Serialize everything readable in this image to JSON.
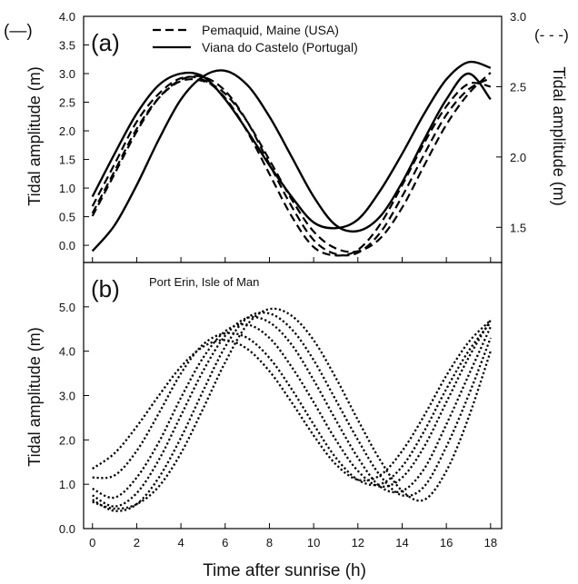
{
  "figure": {
    "xlabel": "Time after sunrise (h)",
    "x_ticks": [
      0,
      2,
      4,
      6,
      8,
      10,
      12,
      14,
      16,
      18
    ]
  },
  "chart_data": [
    {
      "type": "line",
      "panel_label": "(a)",
      "ylabel_left": "Tidal amplitude (m)",
      "ylabel_right": "Tidal amplitude (m)",
      "left_axis_marker": "(—)",
      "right_axis_marker": "(- - -)",
      "xlim": [
        -0.4,
        18.5
      ],
      "ylim_left": [
        -0.3,
        4.0
      ],
      "ylim_right": [
        1.25,
        3.0
      ],
      "yticks_left": [
        0.0,
        0.5,
        1.0,
        1.5,
        2.0,
        2.5,
        3.0,
        3.5,
        4.0
      ],
      "yticks_right": [
        1.5,
        2.0,
        2.5,
        3.0
      ],
      "legend_position": "top-right",
      "legend": [
        {
          "label": "Pemaquid, Maine (USA)",
          "style": "dashed"
        },
        {
          "label": "Viana do Castelo (Portugal)",
          "style": "solid"
        }
      ],
      "series": [
        {
          "name": "Viana do Castelo (Portugal)",
          "style": "solid",
          "axis": "left",
          "x": [
            0,
            1,
            2,
            3,
            4,
            5,
            6,
            7,
            8,
            9,
            10,
            11,
            12,
            13,
            14,
            15,
            16,
            17,
            18
          ],
          "y": [
            0.85,
            1.6,
            2.3,
            2.8,
            3.0,
            2.95,
            2.55,
            2.0,
            1.4,
            0.85,
            0.4,
            0.3,
            0.45,
            0.95,
            1.6,
            2.3,
            2.9,
            3.2,
            3.1
          ]
        },
        {
          "name": "Viana do Castelo (Portugal)",
          "style": "solid",
          "axis": "left",
          "x": [
            0,
            1,
            2,
            3,
            4,
            5,
            6,
            7,
            8,
            9,
            10,
            11,
            12,
            13,
            14,
            15,
            16,
            17,
            18
          ],
          "y": [
            -0.1,
            0.35,
            1.05,
            1.85,
            2.55,
            2.95,
            3.05,
            2.8,
            2.25,
            1.55,
            0.85,
            0.35,
            0.25,
            0.5,
            1.1,
            1.85,
            2.55,
            3.0,
            2.55
          ]
        },
        {
          "name": "Pemaquid, Maine (USA)",
          "style": "dashed",
          "axis": "right",
          "x": [
            0,
            1,
            2,
            3,
            4,
            5,
            6,
            7,
            8,
            9,
            10,
            11,
            12,
            13,
            14,
            15,
            16,
            17,
            18
          ],
          "y": [
            1.65,
            1.95,
            2.25,
            2.45,
            2.56,
            2.55,
            2.42,
            2.18,
            1.88,
            1.58,
            1.36,
            1.3,
            1.34,
            1.52,
            1.8,
            2.1,
            2.36,
            2.52,
            2.5
          ]
        },
        {
          "name": "Pemaquid, Maine (USA)",
          "style": "dashed",
          "axis": "right",
          "x": [
            0,
            1,
            2,
            3,
            4,
            5,
            6,
            7,
            8,
            9,
            10,
            11,
            12,
            13,
            14,
            15,
            16,
            17,
            18
          ],
          "y": [
            1.58,
            1.88,
            2.18,
            2.42,
            2.55,
            2.57,
            2.47,
            2.25,
            1.95,
            1.65,
            1.41,
            1.31,
            1.32,
            1.46,
            1.72,
            2.02,
            2.3,
            2.48,
            2.56
          ]
        },
        {
          "name": "Pemaquid, Maine (USA)",
          "style": "dashed",
          "axis": "right",
          "x": [
            0,
            1,
            2,
            3,
            4,
            5,
            6,
            7,
            8,
            9,
            10,
            11,
            12,
            13,
            14,
            15,
            16,
            17,
            18
          ],
          "y": [
            1.6,
            1.9,
            2.2,
            2.42,
            2.54,
            2.54,
            2.45,
            2.25,
            1.98,
            1.7,
            1.47,
            1.35,
            1.33,
            1.42,
            1.64,
            1.94,
            2.23,
            2.45,
            2.6
          ]
        }
      ]
    },
    {
      "type": "line",
      "panel_label": "(b)",
      "annotation": "Port Erin, Isle of Man",
      "ylabel": "Tidal amplitude (m)",
      "xlim": [
        -0.4,
        18.5
      ],
      "ylim": [
        0.0,
        6.0
      ],
      "yticks": [
        0.0,
        1.0,
        2.0,
        3.0,
        4.0,
        5.0
      ],
      "series": [
        {
          "style": "dotted",
          "x": [
            0,
            1,
            2,
            3,
            4,
            5,
            6,
            7,
            8,
            9,
            10,
            11,
            12,
            13,
            14,
            15,
            16,
            17,
            18
          ],
          "y": [
            1.35,
            1.7,
            2.3,
            3.0,
            3.65,
            4.1,
            4.25,
            4.05,
            3.55,
            2.85,
            2.1,
            1.45,
            1.1,
            1.2,
            1.75,
            2.55,
            3.45,
            4.2,
            4.7
          ]
        },
        {
          "style": "dotted",
          "x": [
            0,
            1,
            2,
            3,
            4,
            5,
            6,
            7,
            8,
            9,
            10,
            11,
            12,
            13,
            14,
            15,
            16,
            17,
            18
          ],
          "y": [
            1.15,
            1.2,
            1.75,
            2.6,
            3.5,
            4.15,
            4.4,
            4.3,
            3.85,
            3.15,
            2.35,
            1.6,
            1.1,
            1.0,
            1.4,
            2.2,
            3.15,
            4.0,
            4.65
          ]
        },
        {
          "style": "dotted",
          "x": [
            0,
            1,
            2,
            3,
            4,
            5,
            6,
            7,
            8,
            9,
            10,
            11,
            12,
            13,
            14,
            15,
            16,
            17,
            18
          ],
          "y": [
            0.9,
            0.7,
            1.15,
            1.95,
            2.95,
            3.85,
            4.45,
            4.6,
            4.3,
            3.65,
            2.85,
            2.0,
            1.3,
            0.95,
            1.15,
            1.85,
            2.85,
            3.85,
            4.7
          ]
        },
        {
          "style": "dotted",
          "x": [
            0,
            1,
            2,
            3,
            4,
            5,
            6,
            7,
            8,
            9,
            10,
            11,
            12,
            13,
            14,
            15,
            16,
            17,
            18
          ],
          "y": [
            0.75,
            0.5,
            0.8,
            1.55,
            2.55,
            3.55,
            4.35,
            4.75,
            4.65,
            4.15,
            3.35,
            2.45,
            1.6,
            0.95,
            0.85,
            1.35,
            2.35,
            3.45,
            4.55
          ]
        },
        {
          "style": "dotted",
          "x": [
            0,
            1,
            2,
            3,
            4,
            5,
            6,
            7,
            8,
            9,
            10,
            11,
            12,
            13,
            14,
            15,
            16,
            17,
            18
          ],
          "y": [
            0.65,
            0.4,
            0.55,
            1.15,
            2.05,
            3.1,
            4.1,
            4.75,
            4.85,
            4.5,
            3.8,
            2.9,
            2.0,
            1.2,
            0.75,
            0.95,
            1.85,
            3.0,
            4.3
          ]
        },
        {
          "style": "dotted",
          "x": [
            0,
            1,
            2,
            3,
            4,
            5,
            6,
            7,
            8,
            9,
            10,
            11,
            12,
            13,
            14,
            15,
            16,
            17,
            18
          ],
          "y": [
            0.6,
            0.45,
            0.55,
            0.95,
            1.7,
            2.7,
            3.75,
            4.6,
            4.95,
            4.8,
            4.25,
            3.4,
            2.45,
            1.55,
            0.85,
            0.65,
            1.3,
            2.5,
            4.0
          ]
        }
      ]
    }
  ]
}
